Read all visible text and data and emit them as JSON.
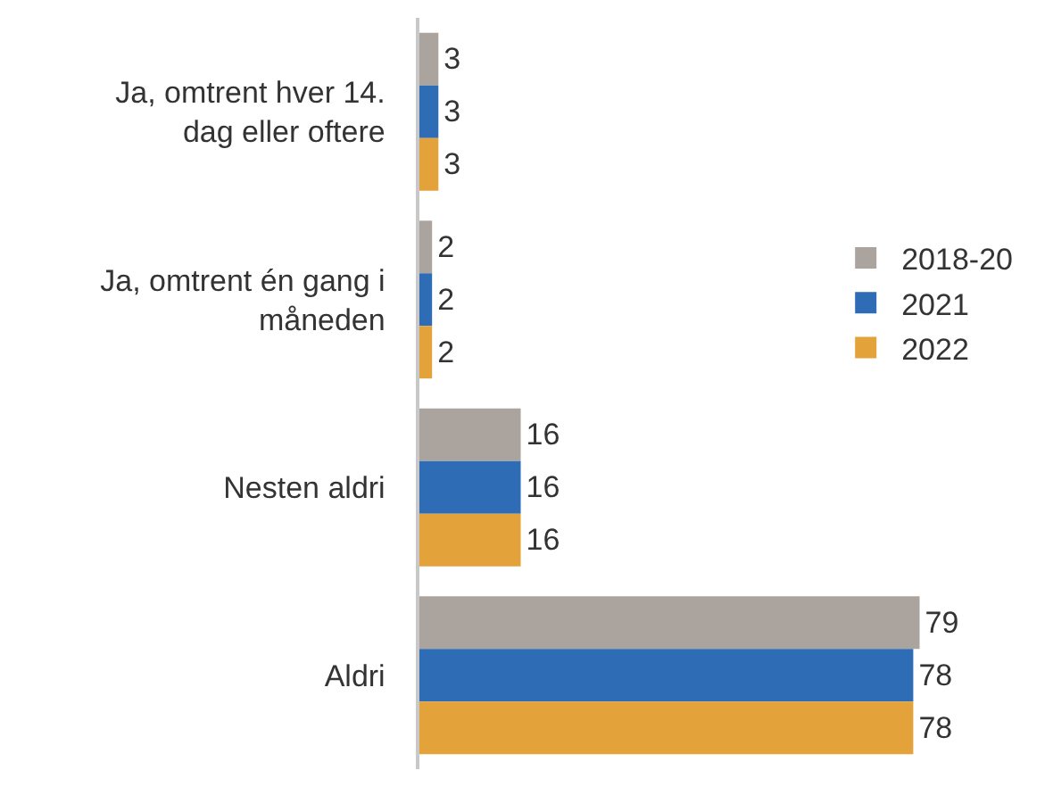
{
  "chart_data": {
    "type": "bar",
    "orientation": "horizontal",
    "categories": [
      "Ja, omtrent hver 14. dag eller oftere",
      "Ja, omtrent én gang i måneden",
      "Nesten aldri",
      "Aldri"
    ],
    "series": [
      {
        "name": "2018-20",
        "color": "#aba49e",
        "values": [
          3,
          2,
          16,
          79
        ]
      },
      {
        "name": "2021",
        "color": "#2e6db5",
        "values": [
          3,
          2,
          16,
          78
        ]
      },
      {
        "name": "2022",
        "color": "#e3a23a",
        "values": [
          3,
          2,
          16,
          78
        ]
      }
    ],
    "data_labels": true,
    "legend": "right",
    "grid": false
  }
}
